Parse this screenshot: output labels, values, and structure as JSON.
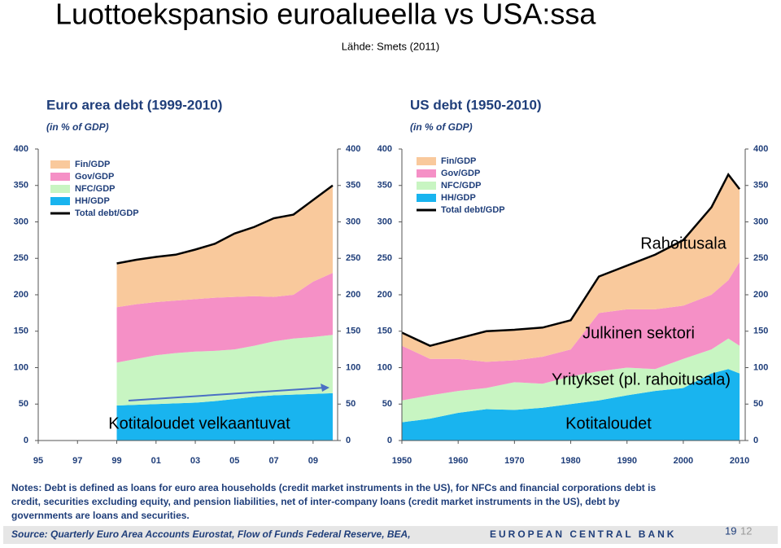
{
  "title": "Luottoekspansio euroalueella vs USA:ssa",
  "subtitle": "Lähde: Smets (2011)",
  "notes": [
    "Notes: Debt is defined as loans for euro area households (credit market instruments in the US), for NFCs and financial corporations debt is",
    "credit, securities excluding equity, and pension liabilities, net of inter-company loans (credit market instruments in the US), debt by",
    "governments are loans and securities."
  ],
  "source": "Source: Quarterly Euro Area Accounts Eurostat, Flow of Funds Federal Reserve, BEA,",
  "footer": "EUROPEAN CENTRAL BANK",
  "page_numbers": [
    "19",
    "12"
  ],
  "chart_data": [
    {
      "type": "area",
      "stacked": true,
      "title": "Euro area debt (1999-2010)",
      "subtitle": "(in % of GDP)",
      "x": [
        1999,
        2000,
        2001,
        2002,
        2003,
        2004,
        2005,
        2006,
        2007,
        2008,
        2009,
        2010
      ],
      "xlim": [
        1995,
        2010.25
      ],
      "xticks": [
        {
          "value": 1995,
          "label": "95"
        },
        {
          "value": 1997,
          "label": "97"
        },
        {
          "value": 1999,
          "label": "99"
        },
        {
          "value": 2001,
          "label": "01"
        },
        {
          "value": 2003,
          "label": "03"
        },
        {
          "value": 2005,
          "label": "05"
        },
        {
          "value": 2007,
          "label": "07"
        },
        {
          "value": 2009,
          "label": "09"
        }
      ],
      "ylim": [
        0,
        400
      ],
      "yticks": [
        0,
        50,
        100,
        150,
        200,
        250,
        300,
        350,
        400
      ],
      "y2lim": [
        0,
        400
      ],
      "y2ticks": [
        0,
        50,
        100,
        150,
        200,
        250,
        300,
        350,
        400
      ],
      "series": [
        {
          "name": "Fin/GDP",
          "color": "#f9c99c",
          "values": [
            60,
            61,
            62,
            63,
            68,
            74,
            87,
            95,
            108,
            110,
            112,
            120
          ]
        },
        {
          "name": "Gov/GDP",
          "color": "#f590c6",
          "values": [
            76,
            75,
            73,
            72,
            72,
            73,
            72,
            68,
            61,
            60,
            76,
            85
          ]
        },
        {
          "name": "NFC/GDP",
          "color": "#c8f5c2",
          "values": [
            59,
            63,
            67,
            69,
            70,
            69,
            68,
            70,
            74,
            77,
            78,
            80
          ]
        },
        {
          "name": "HH/GDP",
          "color": "#19b4ef",
          "values": [
            48,
            49,
            50,
            51,
            52,
            54,
            57,
            60,
            62,
            63,
            64,
            65
          ]
        },
        {
          "name": "Total debt/GDP",
          "color": "#000000",
          "type": "line",
          "values": [
            243,
            248,
            252,
            255,
            262,
            270,
            284,
            293,
            305,
            310,
            330,
            350
          ]
        }
      ],
      "annotations": [
        "Kotitaloudet velkaantuvat"
      ]
    },
    {
      "type": "area",
      "stacked": true,
      "title": "US debt (1950-2010)",
      "subtitle": "(in % of GDP)",
      "x": [
        1950,
        1955,
        1960,
        1965,
        1970,
        1975,
        1980,
        1985,
        1990,
        1995,
        2000,
        2005,
        2008,
        2010
      ],
      "xlim": [
        1950,
        2011
      ],
      "xticks": [
        1950,
        1960,
        1970,
        1980,
        1990,
        2000,
        2010
      ],
      "ylim": [
        0,
        400
      ],
      "yticks": [
        0,
        50,
        100,
        150,
        200,
        250,
        300,
        350,
        400
      ],
      "y2lim": [
        0,
        400
      ],
      "y2ticks": [
        0,
        50,
        100,
        150,
        200,
        250,
        300,
        350,
        400
      ],
      "series": [
        {
          "name": "Fin/GDP",
          "color": "#f9c99c",
          "values": [
            18,
            18,
            28,
            42,
            42,
            40,
            40,
            50,
            60,
            75,
            90,
            120,
            145,
            100
          ]
        },
        {
          "name": "Gov/GDP",
          "color": "#f590c6",
          "values": [
            75,
            50,
            44,
            36,
            30,
            37,
            37,
            80,
            80,
            82,
            73,
            75,
            80,
            115
          ]
        },
        {
          "name": "NFC/GDP",
          "color": "#c8f5c2",
          "values": [
            30,
            32,
            30,
            29,
            38,
            33,
            38,
            40,
            38,
            30,
            40,
            33,
            42,
            38
          ]
        },
        {
          "name": "HH/GDP",
          "color": "#19b4ef",
          "values": [
            25,
            30,
            38,
            43,
            42,
            45,
            50,
            55,
            62,
            68,
            72,
            92,
            98,
            92
          ]
        },
        {
          "name": "Total debt/GDP",
          "color": "#000000",
          "type": "line",
          "values": [
            148,
            130,
            140,
            150,
            152,
            155,
            165,
            225,
            240,
            255,
            275,
            320,
            365,
            345
          ]
        }
      ],
      "annotations": [
        "Rahoitusala",
        "Julkinen sektori",
        "Yritykset (pl. rahoitusala)",
        "Kotitaloudet"
      ]
    }
  ]
}
